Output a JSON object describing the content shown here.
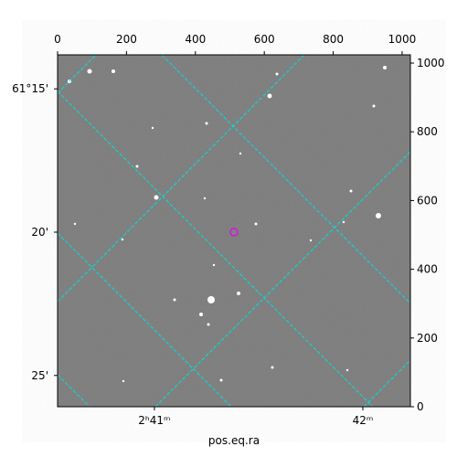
{
  "chart_data": {
    "type": "image",
    "xlabel": "pos.eq.ra",
    "xlim": [
      0,
      1024
    ],
    "ylim": [
      0,
      1024
    ],
    "xticks": [
      0,
      200,
      400,
      600,
      800,
      1000
    ],
    "yticks": [
      0,
      200,
      400,
      600,
      800,
      1000
    ],
    "ra_ticks": [
      {
        "value": 281,
        "label": "2ʰ41ᵐ"
      },
      {
        "value": 886,
        "label": "42ᵐ"
      }
    ],
    "dec_ticks": [
      {
        "value": 925,
        "label": "61°15'"
      },
      {
        "value": 508,
        "label": "20'"
      },
      {
        "value": 91,
        "label": "25'"
      }
    ],
    "grid_color": "#00e0e0",
    "background": "#7c7c7c"
  }
}
